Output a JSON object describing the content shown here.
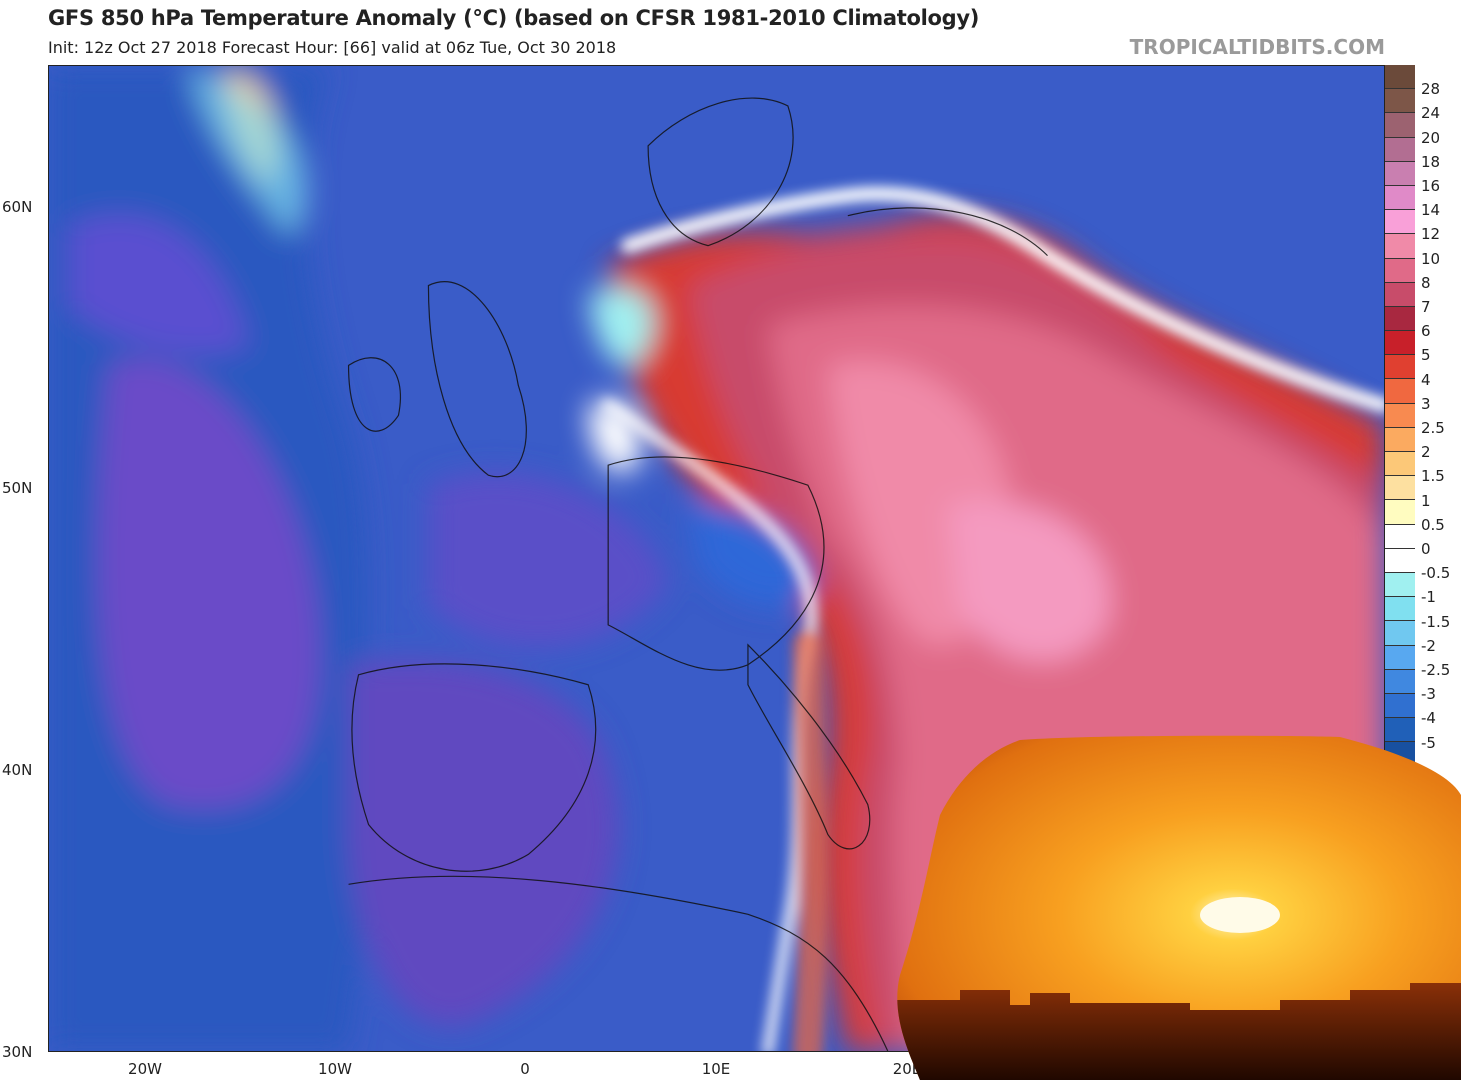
{
  "header": {
    "title": "GFS 850 hPa Temperature Anomaly (°C) (based on CFSR 1981-2010 Climatology)",
    "subtitle": "Init: 12z Oct 27 2018   Forecast Hour: [66]   valid at 06z Tue, Oct 30 2018",
    "credit": "TROPICALTIDBITS.COM"
  },
  "axes": {
    "lat_labels": [
      "60N",
      "50N",
      "40N",
      "30N"
    ],
    "lon_labels": [
      "20W",
      "10W",
      "0",
      "10E",
      "20E"
    ]
  },
  "colorbar": {
    "labels": [
      "28",
      "24",
      "20",
      "18",
      "16",
      "14",
      "12",
      "10",
      "8",
      "7",
      "6",
      "5",
      "4",
      "3",
      "2.5",
      "2",
      "1.5",
      "1",
      "0.5",
      "0",
      "-0.5",
      "-1",
      "-1.5",
      "-2",
      "-2.5",
      "-3",
      "-4",
      "-5"
    ],
    "colors": [
      "#6b4a3a",
      "#7d5648",
      "#9c6270",
      "#b26e92",
      "#c97fb0",
      "#e08ac8",
      "#f9a0d8",
      "#f08aa8",
      "#e06a88",
      "#c84c6a",
      "#a82840",
      "#c8202a",
      "#e04030",
      "#f06840",
      "#f88a50",
      "#fbaa60",
      "#fcc878",
      "#fde0a0",
      "#fffcc0",
      "#ffffff",
      "#ffffff",
      "#a0f0f0",
      "#80e0f0",
      "#70c8f0",
      "#58a8f0",
      "#4088e0",
      "#3070d0",
      "#2060b8",
      "#1850a0"
    ]
  },
  "overlay": {
    "image": "sunset-photo"
  }
}
